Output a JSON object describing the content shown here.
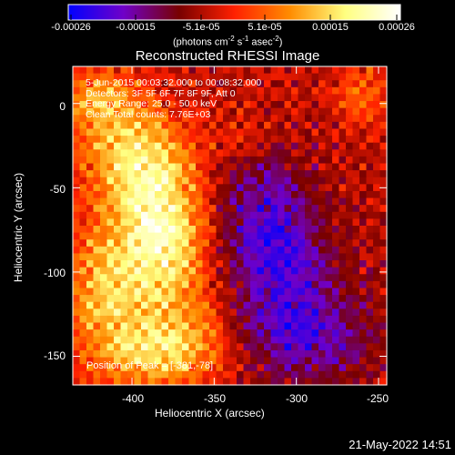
{
  "chart_data": {
    "type": "heatmap",
    "title": "Reconstructed RHESSI Image",
    "xlabel": "Heliocentric X (arcsec)",
    "ylabel": "Heliocentric Y (arcsec)",
    "xlim": [
      -436,
      -245
    ],
    "ylim": [
      -167,
      22
    ],
    "xticks": [
      -400,
      -350,
      -300,
      -250
    ],
    "yticks": [
      0,
      -50,
      -100,
      -150
    ],
    "colorbar": {
      "unit_line": "(photons cm",
      "unit_exp1": "-2",
      "unit_mid": " s",
      "unit_exp2": "-1",
      "unit_mid2": " asec",
      "unit_exp3": "-2",
      "unit_end": ")",
      "range": [
        -0.00026,
        0.00026
      ],
      "ticks": [
        "-0.00026",
        "-0.00015",
        "-5.1e-05",
        "5.1e-05",
        "0.00015",
        "0.00026"
      ],
      "colors": [
        "#0000ff",
        "#7000c8",
        "#780000",
        "#ff2000",
        "#ff8c00",
        "#ffff80",
        "#ffffff"
      ]
    },
    "annotations": [
      "5-Jun-2015 00:03:32.000 to 00:08:32.000",
      "Detectors: 3F 5F 6F 7F 8F 9F, Att 0",
      "Energy Range: 25.0 - 50.0 keV",
      "Clean     Total counts: 7.76E+03"
    ],
    "peak_label": "Position of Peak = [-381,-78]",
    "peak": [
      -381,
      -78
    ],
    "sources": [
      {
        "x": -381,
        "y": -78,
        "amp": 1.0,
        "sx": 18,
        "sy": 22
      },
      {
        "x": -395,
        "y": -35,
        "amp": 0.85,
        "sx": 22,
        "sy": 20
      },
      {
        "x": -415,
        "y": -110,
        "amp": 0.7,
        "sx": 18,
        "sy": 30
      },
      {
        "x": -370,
        "y": -130,
        "amp": 0.55,
        "sx": 22,
        "sy": 22
      },
      {
        "x": -420,
        "y": 0,
        "amp": 0.6,
        "sx": 20,
        "sy": 16
      },
      {
        "x": -385,
        "y": -150,
        "amp": 0.5,
        "sx": 25,
        "sy": 14
      },
      {
        "x": -260,
        "y": 5,
        "amp": 0.4,
        "sx": 12,
        "sy": 14
      },
      {
        "x": -330,
        "y": -20,
        "amp": 0.25,
        "sx": 10,
        "sy": 10
      },
      {
        "x": -310,
        "y": -100,
        "amp": -0.55,
        "sx": 25,
        "sy": 30
      },
      {
        "x": -290,
        "y": -140,
        "amp": -0.45,
        "sx": 30,
        "sy": 20
      },
      {
        "x": -320,
        "y": -60,
        "amp": -0.4,
        "sx": 20,
        "sy": 25
      }
    ]
  },
  "footer": {
    "timestamp": "21-May-2022 14:51"
  }
}
